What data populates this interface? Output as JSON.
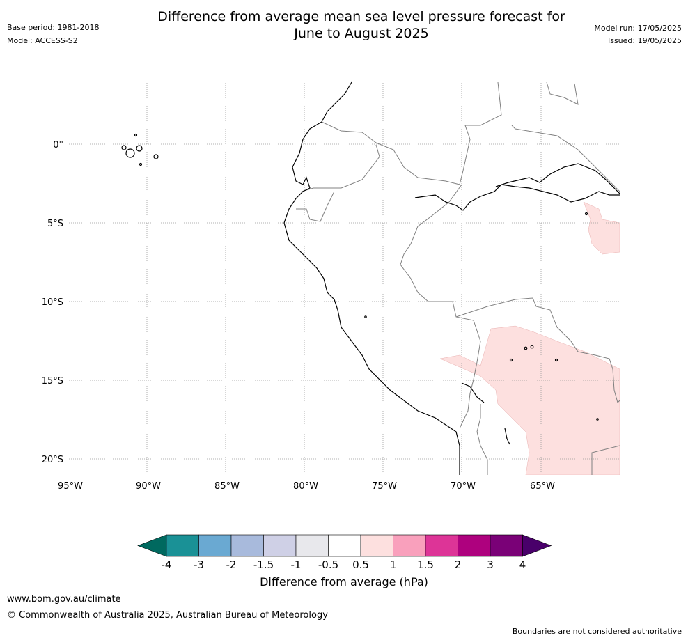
{
  "header": {
    "title_line1": "Difference from average mean sea level pressure forecast for",
    "title_line2": "June to August 2025",
    "base_period": "Base period: 1981-2018",
    "model": "Model: ACCESS-S2",
    "model_run": "Model run: 17/05/2025",
    "issued": "Issued: 19/05/2025"
  },
  "map": {
    "lon_ticks": [
      "95°W",
      "90°W",
      "85°W",
      "80°W",
      "75°W",
      "70°W",
      "65°W"
    ],
    "lat_ticks": [
      "0°",
      "5°S",
      "10°S",
      "15°S",
      "20°S"
    ],
    "gridlines": true,
    "anomaly_regions": [
      {
        "label": "0.5 to 1 hPa above average",
        "range": [
          0.5,
          1
        ],
        "color": "#fde0df",
        "area": "Bolivian Altiplano / southern Peru-Brazil border"
      },
      {
        "label": "0.5 to 1 hPa above average",
        "range": [
          0.5,
          1
        ],
        "color": "#fde0df",
        "area": "Northeastern Brazil near Amazon mouth"
      }
    ]
  },
  "colorbar": {
    "label": "Difference from average (hPa)",
    "ticks": [
      "-4",
      "-3",
      "-2",
      "-1.5",
      "-1",
      "-0.5",
      "0.5",
      "1",
      "1.5",
      "2",
      "3",
      "4"
    ],
    "colors": [
      "#00695f",
      "#1a9196",
      "#6aa9d2",
      "#a8badc",
      "#cfd0e6",
      "#e8e8ec",
      "#ffffff",
      "#fde0df",
      "#f9a0bc",
      "#dd3497",
      "#ae017e",
      "#7a0177",
      "#49006a"
    ]
  },
  "footer": {
    "website": "www.bom.gov.au/climate",
    "copyright": "© Commonwealth of Australia 2025, Australian Bureau of Meteorology",
    "disclaimer": "Boundaries are not considered authoritative"
  }
}
